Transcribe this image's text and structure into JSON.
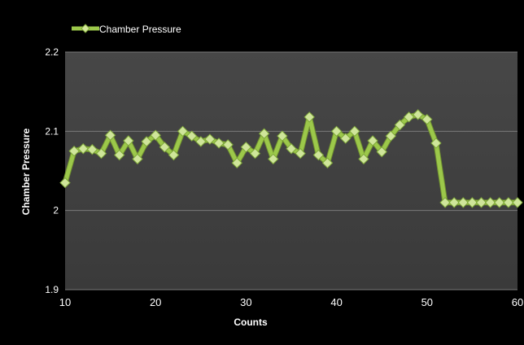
{
  "chart_data": {
    "type": "line",
    "title": "",
    "xlabel": "Counts",
    "ylabel": "Chamber Pressure",
    "xlim": [
      10,
      60
    ],
    "ylim": [
      1.9,
      2.2
    ],
    "x_ticks": [
      "10",
      "20",
      "30",
      "40",
      "50",
      "60"
    ],
    "y_ticks": [
      "1.9",
      "2",
      "2.1",
      "2.2"
    ],
    "grid": true,
    "legend_position": "top-left",
    "series": [
      {
        "name": "Chamber Pressure",
        "color": "#9cc84a",
        "x": [
          10,
          11,
          12,
          13,
          14,
          15,
          16,
          17,
          18,
          19,
          20,
          21,
          22,
          23,
          24,
          25,
          26,
          27,
          28,
          29,
          30,
          31,
          32,
          33,
          34,
          35,
          36,
          37,
          38,
          39,
          40,
          41,
          42,
          43,
          44,
          45,
          46,
          47,
          48,
          49,
          50,
          51,
          52,
          53,
          54,
          55,
          56,
          57,
          58,
          59,
          60
        ],
        "values": [
          2.035,
          2.075,
          2.078,
          2.077,
          2.072,
          2.095,
          2.07,
          2.088,
          2.065,
          2.087,
          2.095,
          2.08,
          2.07,
          2.1,
          2.094,
          2.087,
          2.09,
          2.085,
          2.083,
          2.06,
          2.08,
          2.072,
          2.097,
          2.065,
          2.094,
          2.078,
          2.072,
          2.118,
          2.07,
          2.06,
          2.1,
          2.091,
          2.1,
          2.065,
          2.088,
          2.074,
          2.094,
          2.108,
          2.118,
          2.121,
          2.115,
          2.085,
          2.01,
          2.01,
          2.01,
          2.01,
          2.01,
          2.01,
          2.01,
          2.01,
          2.01
        ]
      }
    ]
  }
}
